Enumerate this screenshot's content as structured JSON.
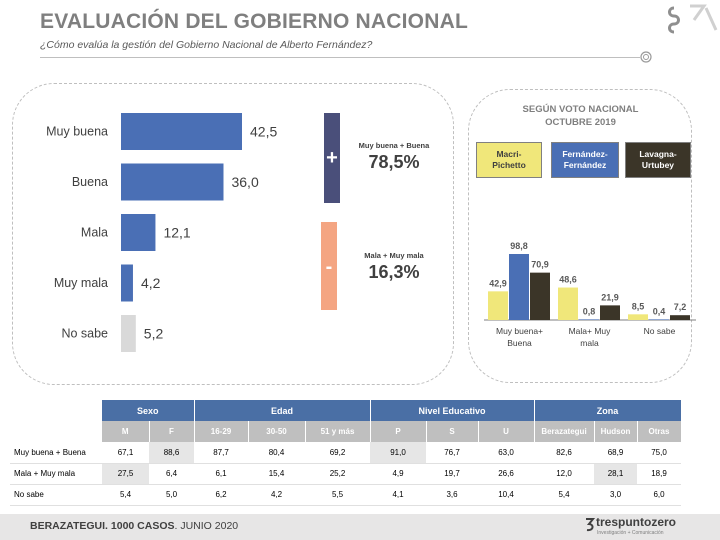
{
  "header": {
    "title": "EVALUACIÓN DEL GOBIERNO NACIONAL",
    "subtitle": "¿Cómo evalúa la gestión del Gobierno Nacional de Alberto Fernández?"
  },
  "chart_data": [
    {
      "type": "bar",
      "orientation": "horizontal",
      "categories": [
        "Muy buena",
        "Buena",
        "Mala",
        "Muy mala",
        "No sabe"
      ],
      "values": [
        42.5,
        36.0,
        12.1,
        4.2,
        5.2
      ],
      "labels": [
        "42,5",
        "36,0",
        "12,1",
        "4,2",
        "5,2"
      ],
      "colors": [
        "#4a6fb5",
        "#4a6fb5",
        "#4a6fb5",
        "#4a6fb5",
        "#d9d9d9"
      ],
      "xlim": [
        0,
        50
      ]
    },
    {
      "type": "bar",
      "title_lines": [
        "SEGÚN VOTO NACIONAL",
        "OCTUBRE 2019"
      ],
      "categories": [
        [
          "Muy buena+",
          "Buena"
        ],
        [
          "Mala+ Muy",
          "mala"
        ],
        [
          "No sabe"
        ]
      ],
      "series": [
        {
          "name": "Macri-Pichetto",
          "name_lines": [
            "Macri-",
            "Pichetto"
          ],
          "color": "#f0e77a",
          "text_color": "#404040",
          "values": [
            42.9,
            48.6,
            8.5
          ],
          "labels": [
            "42,9",
            "48,6",
            "8,5"
          ]
        },
        {
          "name": "Fernández-Fernández",
          "name_lines": [
            "Fernández-",
            "Fernández"
          ],
          "color": "#4a6fb5",
          "text_color": "#ffffff",
          "values": [
            98.8,
            0.8,
            0.4
          ],
          "labels": [
            "98,8",
            "0,8",
            "0,4"
          ]
        },
        {
          "name": "Lavagna-Urtubey",
          "name_lines": [
            "Lavagna-",
            "Urtubey"
          ],
          "color": "#3b3528",
          "text_color": "#ffffff",
          "values": [
            70.9,
            21.9,
            7.2
          ],
          "labels": [
            "70,9",
            "21,9",
            "7,2"
          ]
        }
      ],
      "ylim": [
        0,
        100
      ]
    }
  ],
  "summary": {
    "positive": {
      "sign": "+",
      "label": "Muy buena + Buena",
      "value": "78,5%",
      "color": "#4a4f7a"
    },
    "negative": {
      "sign": "-",
      "label": "Mala + Muy mala",
      "value": "16,3%",
      "color": "#f4a582"
    }
  },
  "table": {
    "groups": [
      {
        "label": "Sexo",
        "span": 2
      },
      {
        "label": "Edad",
        "span": 3
      },
      {
        "label": "Nivel Educativo",
        "span": 3
      },
      {
        "label": "Zona",
        "span": 3
      }
    ],
    "columns": [
      "M",
      "F",
      "16-29",
      "30-50",
      "51 y más",
      "P",
      "S",
      "U",
      "Berazategui",
      "Hudson",
      "Otras"
    ],
    "rows": [
      {
        "label": "Muy buena + Buena",
        "values": [
          "67,1",
          "88,6",
          "87,7",
          "80,4",
          "69,2",
          "91,0",
          "76,7",
          "63,0",
          "82,6",
          "68,9",
          "75,0"
        ],
        "highlight": [
          1,
          5
        ]
      },
      {
        "label": "Mala + Muy mala",
        "values": [
          "27,5",
          "6,4",
          "6,1",
          "15,4",
          "25,2",
          "4,9",
          "19,7",
          "26,6",
          "12,0",
          "28,1",
          "18,9"
        ],
        "highlight": [
          0,
          9
        ]
      },
      {
        "label": "No sabe",
        "values": [
          "5,4",
          "5,0",
          "6,2",
          "4,2",
          "5,5",
          "4,1",
          "3,6",
          "10,4",
          "5,4",
          "3,0",
          "6,0"
        ],
        "highlight": []
      }
    ]
  },
  "footer": {
    "text_bold": "BERAZATEGUI. 1000 CASOS",
    "text_rest": ". JUNIO 2020",
    "brand_name": "trespuntozero",
    "brand_tagline": "Investigación + Comunicación"
  },
  "colors": {
    "blue": "#4a6fb5",
    "table_header": "#4a6fa5",
    "table_subheader": "#bfbfbf",
    "gray_bar": "#d9d9d9"
  }
}
